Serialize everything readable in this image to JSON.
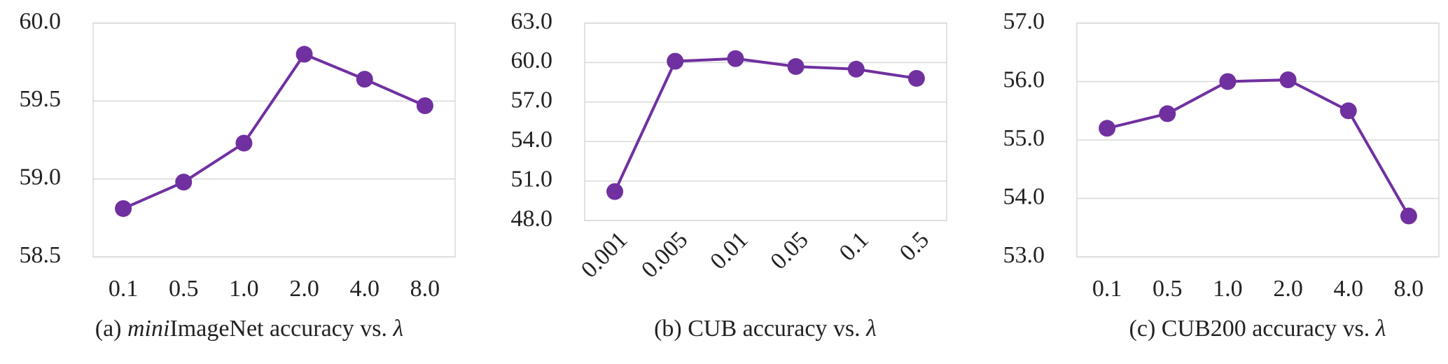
{
  "chart_data": [
    {
      "type": "line",
      "title": [
        "(a) ",
        "mini",
        "ImageNet accuracy vs. ",
        "λ"
      ],
      "title_italic": [
        false,
        true,
        false,
        true
      ],
      "categories": [
        "0.1",
        "0.5",
        "1.0",
        "2.0",
        "4.0",
        "8.0"
      ],
      "values": [
        58.81,
        58.98,
        59.23,
        59.8,
        59.64,
        59.47
      ],
      "color": "#7030a0",
      "ylim": [
        58.5,
        60.0
      ],
      "yticks": [
        {
          "value": 58.5,
          "label": "58.5"
        },
        {
          "value": 59,
          "label": "59.0"
        },
        {
          "value": 59.5,
          "label": "59.5"
        },
        {
          "value": 60,
          "label": "60.0"
        }
      ],
      "grid": true
    },
    {
      "type": "line",
      "title": [
        "(b) CUB accuracy vs. ",
        "λ"
      ],
      "title_italic": [
        false,
        true
      ],
      "categories": [
        "0.001",
        "0.005",
        "0.01",
        "0.05",
        "0.1",
        "0.5"
      ],
      "values": [
        50.2,
        60.1,
        60.3,
        59.7,
        59.5,
        58.8
      ],
      "color": "#7030a0",
      "ylim": [
        48,
        63
      ],
      "yticks": [
        {
          "value": 48,
          "label": "48.0"
        },
        {
          "value": 51,
          "label": "51.0"
        },
        {
          "value": 54,
          "label": "54.0"
        },
        {
          "value": 57,
          "label": "57.0"
        },
        {
          "value": 60,
          "label": "60.0"
        },
        {
          "value": 63,
          "label": "63.0"
        }
      ],
      "grid": true
    },
    {
      "type": "line",
      "title": [
        "(c) CUB200 accuracy vs. ",
        "λ"
      ],
      "title_italic": [
        false,
        true
      ],
      "categories": [
        "0.1",
        "0.5",
        "1.0",
        "2.0",
        "4.0",
        "8.0"
      ],
      "values": [
        55.2,
        55.45,
        56.0,
        56.03,
        55.5,
        53.7
      ],
      "color": "#7030a0",
      "ylim": [
        53,
        57
      ],
      "yticks": [
        {
          "value": 53,
          "label": "53.0"
        },
        {
          "value": 54,
          "label": "54.0"
        },
        {
          "value": 55,
          "label": "55.0"
        },
        {
          "value": 56,
          "label": "56.0"
        },
        {
          "value": 57,
          "label": "57.0"
        }
      ],
      "grid": true
    }
  ]
}
